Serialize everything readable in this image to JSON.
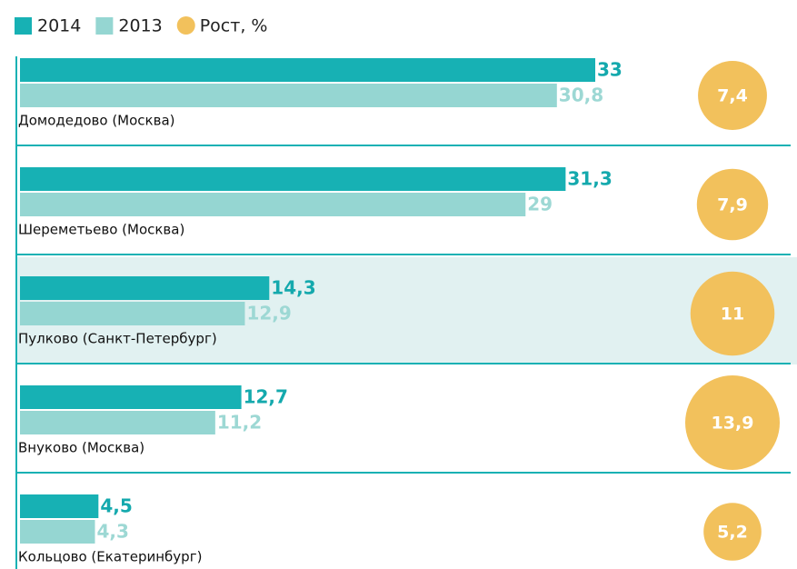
{
  "chart_data": {
    "type": "bar",
    "orientation": "horizontal",
    "categories": [
      "Домодедово (Москва)",
      "Шереметьево (Москва)",
      "Пулково (Санкт-Петербург)",
      "Внуково (Москва)",
      "Кольцово (Екатеринбург)"
    ],
    "series": [
      {
        "name": "2014",
        "color": "#17b1b4",
        "marker": "bar",
        "values": [
          33,
          31.3,
          14.3,
          12.7,
          4.5
        ],
        "value_labels": [
          "33",
          "31,3",
          "14,3",
          "12,7",
          "4,5"
        ]
      },
      {
        "name": "2013",
        "color": "#95d6d2",
        "marker": "bar",
        "values": [
          30.8,
          29,
          12.9,
          11.2,
          4.3
        ],
        "value_labels": [
          "30,8",
          "29",
          "12,9",
          "11,2",
          "4,3"
        ]
      },
      {
        "name": "Рост, %",
        "color": "#f2c15c",
        "marker": "circle",
        "values": [
          7.4,
          7.9,
          11,
          13.9,
          5.2
        ],
        "value_labels": [
          "7,4",
          "7,9",
          "11",
          "13,9",
          "5,2"
        ]
      }
    ],
    "highlight": 2
  }
}
